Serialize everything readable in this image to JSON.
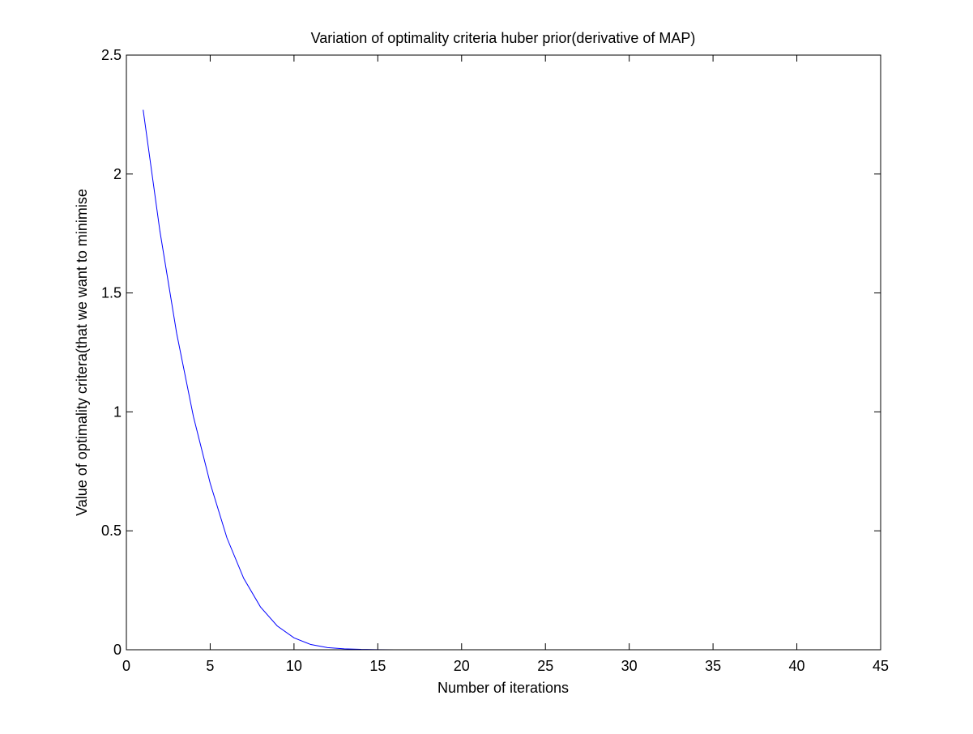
{
  "chart_data": {
    "type": "line",
    "title": "Variation of optimality criteria huber prior(derivative of MAP)",
    "xlabel": "Number of iterations",
    "ylabel": "Value of optimality critera(that we want to minimise",
    "xlim": [
      0,
      45
    ],
    "ylim": [
      0,
      2.5
    ],
    "xticks": [
      0,
      5,
      10,
      15,
      20,
      25,
      30,
      35,
      40,
      45
    ],
    "xtick_labels": [
      "0",
      "5",
      "10",
      "15",
      "20",
      "25",
      "30",
      "35",
      "40",
      "45"
    ],
    "yticks": [
      0,
      0.5,
      1,
      1.5,
      2,
      2.5
    ],
    "ytick_labels": [
      "0",
      "0.5",
      "1",
      "1.5",
      "2",
      "2.5"
    ],
    "grid": false,
    "series": [
      {
        "color": "#0000ff",
        "x": [
          1,
          2,
          3,
          4,
          5,
          6,
          7,
          8,
          9,
          10,
          11,
          12,
          13,
          14,
          15,
          16,
          17,
          18,
          19,
          20,
          21,
          22,
          23,
          24,
          25,
          26,
          27,
          28,
          29,
          30,
          31,
          32,
          33,
          34,
          35,
          36,
          37,
          38,
          39,
          40,
          41,
          42,
          43,
          44
        ],
        "values": [
          2.27,
          1.76,
          1.33,
          0.98,
          0.7,
          0.47,
          0.3,
          0.18,
          0.1,
          0.05,
          0.022,
          0.009,
          0.004,
          0.0015,
          0.0006,
          0.0002,
          0.0001,
          0,
          0,
          0,
          0,
          0,
          0,
          0,
          0,
          0,
          0,
          0,
          0,
          0,
          0,
          0,
          0,
          0,
          0,
          0,
          0,
          0,
          0,
          0,
          0,
          0,
          0,
          0
        ]
      }
    ]
  }
}
